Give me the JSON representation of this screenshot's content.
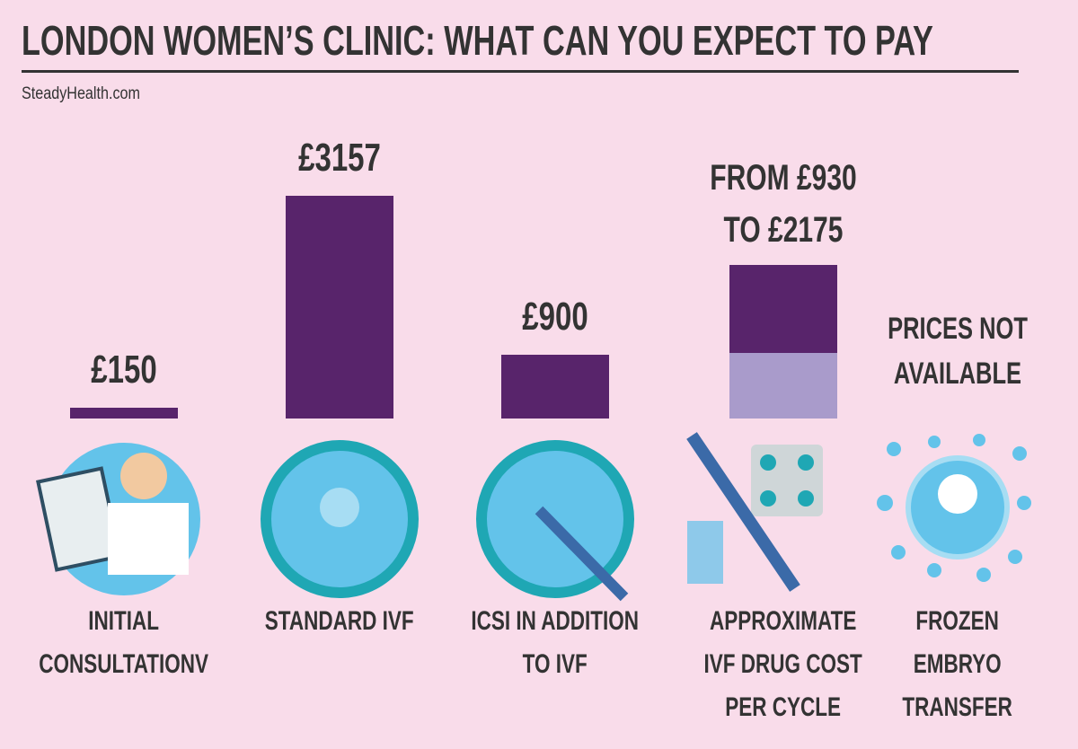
{
  "chart_data": {
    "type": "bar",
    "title": "LONDON WOMEN’S CLINIC: WHAT CAN YOU EXPECT TO PAY",
    "source": "SteadyHealth.com",
    "categories": [
      "INITIAL CONSULTATIONV",
      "STANDARD IVF",
      "ICSI IN ADDITION TO IVF",
      "APPROXIMATE IVF DRUG COST PER CYCLE",
      "FROZEN EMBRYO TRANSFER"
    ],
    "values": [
      150,
      3157,
      900,
      2175,
      null
    ],
    "min_values": [
      null,
      null,
      null,
      930,
      null
    ],
    "value_labels": [
      "£150",
      "£3157",
      "£900",
      "FROM £930 TO £2175",
      "PRICES NOT AVAILABLE"
    ],
    "color": "#58246b",
    "min_color": "#a99bcb"
  }
}
